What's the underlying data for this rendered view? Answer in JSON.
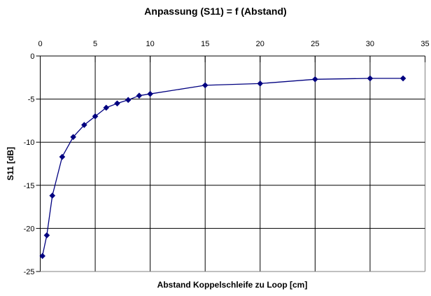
{
  "chart_data": {
    "type": "line",
    "title": "Anpassung (S11) = f (Abstand)",
    "xlabel": "Abstand Koppelschleife zu Loop [cm]",
    "ylabel": "S11 [dB]",
    "x_axis_position": "top",
    "xlim": [
      0,
      35
    ],
    "ylim": [
      -25,
      0
    ],
    "x_ticks": [
      0,
      5,
      10,
      15,
      20,
      25,
      30,
      35
    ],
    "y_ticks": [
      0,
      -5,
      -10,
      -15,
      -20,
      -25
    ],
    "grid": true,
    "legend": "none",
    "series": [
      {
        "name": "S11",
        "marker": "diamond",
        "x": [
          0.2,
          0.6,
          1.1,
          2,
          3,
          4,
          5,
          6,
          7,
          8,
          9,
          10,
          15,
          20,
          25,
          30,
          33
        ],
        "y": [
          -23.2,
          -20.8,
          -16.2,
          -11.7,
          -9.4,
          -8.0,
          -7.0,
          -6.0,
          -5.5,
          -5.1,
          -4.6,
          -4.4,
          -3.4,
          -3.2,
          -2.7,
          -2.6,
          -2.6
        ]
      }
    ]
  },
  "colors": {
    "series": "#000080",
    "gridline": "#000000",
    "axis": "#000000",
    "plot_border": "#808080",
    "background": "#ffffff",
    "text": "#000000"
  }
}
